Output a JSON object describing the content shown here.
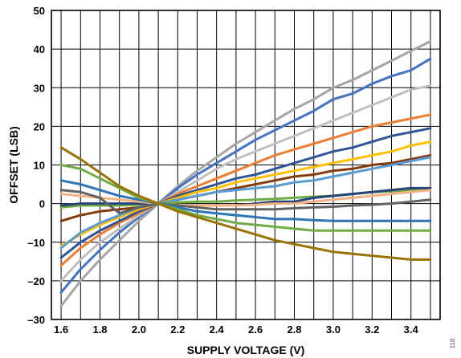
{
  "chart_data": {
    "type": "line",
    "xlabel": "SUPPLY VOLTAGE (V)",
    "ylabel": "OFFSET (LSB)",
    "figure_id": "118",
    "xlim": [
      1.55,
      3.55
    ],
    "ylim": [
      -30,
      50
    ],
    "x_ticks": [
      "1.6",
      "1.8",
      "2.0",
      "2.2",
      "2.4",
      "2.6",
      "2.8",
      "3.0",
      "3.2",
      "3.4"
    ],
    "y_ticks": [
      "50",
      "40",
      "30",
      "20",
      "10",
      "0",
      "–10",
      "–20",
      "–30"
    ],
    "grid": true,
    "x": [
      1.6,
      1.7,
      1.8,
      1.9,
      2.0,
      2.1,
      2.2,
      2.3,
      2.4,
      2.5,
      2.6,
      2.7,
      2.8,
      2.9,
      3.0,
      3.1,
      3.2,
      3.3,
      3.4,
      3.5
    ],
    "series": [
      {
        "color": "#a6a6a6",
        "values": [
          -26.5,
          -20,
          -14.5,
          -9.5,
          -4.5,
          0,
          4.5,
          8.5,
          12,
          15.5,
          18.5,
          21.5,
          24.5,
          27,
          30,
          32,
          34.5,
          37,
          39.5,
          42
        ]
      },
      {
        "color": "#4472c4",
        "values": [
          -23,
          -17,
          -12,
          -7.5,
          -3.5,
          0,
          4,
          7.5,
          10.5,
          13.5,
          16.5,
          19,
          21.5,
          24,
          27,
          28.5,
          31,
          33,
          34.5,
          37.5
        ]
      },
      {
        "color": "#c0c0c0",
        "values": [
          -20,
          -14.5,
          -10,
          -6.5,
          -3,
          0,
          3,
          6,
          9,
          11.5,
          13.5,
          15.5,
          17.5,
          19.5,
          21.5,
          23.5,
          25.5,
          27.5,
          29.5,
          30.5
        ]
      },
      {
        "color": "#ed7d31",
        "values": [
          -16,
          -11.5,
          -8,
          -5,
          -2.5,
          0,
          2.5,
          4.5,
          6.5,
          8.5,
          10.5,
          12.5,
          14,
          15.5,
          17,
          18.5,
          20,
          21,
          22,
          23
        ]
      },
      {
        "color": "#2f5597",
        "values": [
          -14,
          -10,
          -7,
          -4.5,
          -2,
          0,
          2,
          3.5,
          5,
          6.5,
          7.5,
          9,
          10.5,
          12,
          13.5,
          14.5,
          16,
          17.5,
          18.5,
          19.5
        ]
      },
      {
        "color": "#ffc000",
        "values": [
          -11,
          -8,
          -5.5,
          -3.5,
          -1.5,
          0,
          1.5,
          3,
          4,
          5.5,
          6.5,
          7.5,
          8.5,
          9.5,
          10.5,
          11.5,
          12.5,
          13.5,
          15,
          16
        ]
      },
      {
        "color": "#843c0c",
        "values": [
          -4.5,
          -3,
          -2,
          -1.5,
          -1,
          0,
          1,
          2,
          3,
          4,
          5,
          6,
          7,
          7.5,
          8.5,
          9,
          10,
          10.5,
          11.5,
          12.5
        ]
      },
      {
        "color": "#5b9bd5",
        "values": [
          -11.5,
          -7.5,
          -5,
          -3,
          -1,
          0,
          1,
          2,
          3,
          3.5,
          4,
          4.5,
          5.5,
          6,
          7,
          8,
          9,
          10,
          11,
          12
        ]
      },
      {
        "color": "#70ad47",
        "values": [
          -1,
          -0.5,
          -0.5,
          -0.5,
          -0.3,
          0,
          0.3,
          0.5,
          0.5,
          0.8,
          1,
          1.2,
          1.5,
          1.8,
          2,
          2.5,
          3,
          3.2,
          3.5,
          4
        ]
      },
      {
        "color": "#264478",
        "values": [
          -0.5,
          0,
          0,
          0,
          0,
          0,
          -0.5,
          -0.5,
          -0.5,
          -0.5,
          0,
          0.5,
          0.5,
          1.5,
          2,
          2.5,
          3,
          3.5,
          4,
          4
        ]
      },
      {
        "color": "#f4b183",
        "values": [
          2.5,
          2,
          1.5,
          1,
          0.5,
          0,
          -0.5,
          -0.5,
          -0.5,
          -0.5,
          -0.3,
          0,
          0,
          0.5,
          1,
          1.5,
          2,
          2.5,
          3,
          3.5
        ]
      },
      {
        "color": "#636363",
        "values": [
          3.5,
          3,
          1.5,
          -2.5,
          -1,
          0,
          -0.5,
          -1,
          -1.5,
          -1.5,
          -1.5,
          -1.5,
          -1.2,
          -1,
          -0.8,
          -0.5,
          -0.3,
          0,
          0.5,
          1
        ]
      },
      {
        "color": "#2e75b6",
        "values": [
          6,
          5,
          3.5,
          2,
          1,
          0,
          -1,
          -2,
          -2.5,
          -3,
          -3.5,
          -4,
          -4,
          -4.3,
          -4.5,
          -4.5,
          -4.5,
          -4.5,
          -4.5,
          -4.5
        ]
      },
      {
        "color": "#70ad47",
        "values": [
          10,
          9,
          6.5,
          4,
          1.5,
          0,
          -1.5,
          -3,
          -4,
          -5,
          -5.5,
          -6,
          -6.5,
          -7,
          -7,
          -7,
          -7,
          -7,
          -7,
          -7
        ]
      },
      {
        "color": "#997300",
        "values": [
          14.5,
          11.5,
          8,
          4.5,
          2,
          0,
          -2,
          -3.5,
          -5,
          -6.5,
          -8,
          -9.5,
          -10.5,
          -11.5,
          -12.5,
          -13,
          -13.5,
          -14,
          -14.5,
          -14.5
        ]
      }
    ]
  }
}
